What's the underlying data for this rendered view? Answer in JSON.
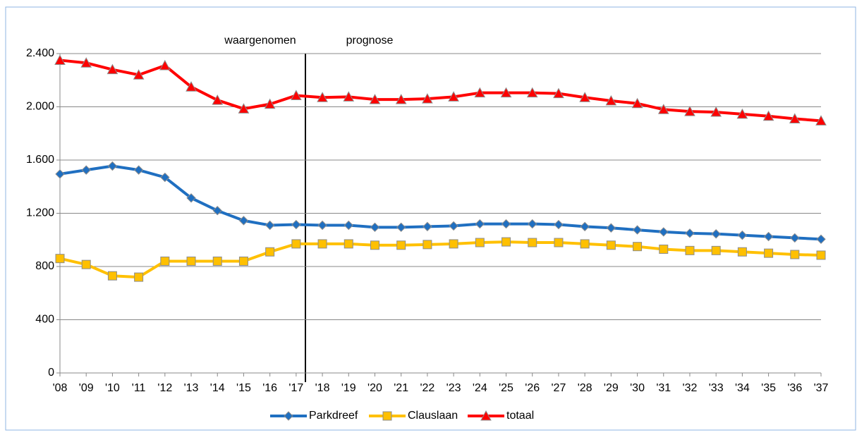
{
  "chart_data": {
    "type": "line",
    "annotations": [
      "waargenomen",
      "prognose"
    ],
    "categories": [
      "'08",
      "'09",
      "'10",
      "'11",
      "'12",
      "'13",
      "'14",
      "'15",
      "'16",
      "'17",
      "'18",
      "'19",
      "'20",
      "'21",
      "'22",
      "'23",
      "'24",
      "'25",
      "'26",
      "'27",
      "'28",
      "'29",
      "'30",
      "'31",
      "'32",
      "'33",
      "'34",
      "'35",
      "'36",
      "'37"
    ],
    "series": [
      {
        "name": "Parkdreef",
        "color": "#1f6fc1",
        "marker": "diamond",
        "values": [
          1495,
          1525,
          1555,
          1525,
          1470,
          1315,
          1220,
          1145,
          1110,
          1115,
          1110,
          1110,
          1095,
          1095,
          1100,
          1105,
          1120,
          1120,
          1120,
          1115,
          1100,
          1090,
          1075,
          1060,
          1050,
          1045,
          1035,
          1025,
          1015,
          1005
        ]
      },
      {
        "name": "Clauslaan",
        "color": "#ffc000",
        "marker": "square",
        "values": [
          860,
          815,
          730,
          720,
          840,
          840,
          840,
          840,
          910,
          970,
          970,
          970,
          960,
          960,
          965,
          970,
          980,
          985,
          980,
          980,
          970,
          960,
          950,
          930,
          920,
          920,
          910,
          900,
          890,
          885
        ]
      },
      {
        "name": "totaal",
        "color": "#ff0000",
        "marker": "triangle",
        "values": [
          2350,
          2330,
          2280,
          2240,
          2310,
          2150,
          2050,
          1985,
          2020,
          2085,
          2070,
          2075,
          2055,
          2055,
          2060,
          2075,
          2105,
          2105,
          2105,
          2100,
          2070,
          2045,
          2025,
          1980,
          1965,
          1960,
          1945,
          1930,
          1910,
          1895
        ]
      }
    ],
    "ylim": [
      0,
      2400
    ],
    "yticks": [
      0,
      400,
      800,
      {
        "value": 1200,
        "label": "1.200"
      },
      {
        "value": 1600,
        "label": "1.600"
      },
      {
        "value": 2000,
        "label": "2.000"
      },
      {
        "value": 2400,
        "label": "2.400"
      }
    ],
    "grid": true,
    "legend": "bottom"
  }
}
